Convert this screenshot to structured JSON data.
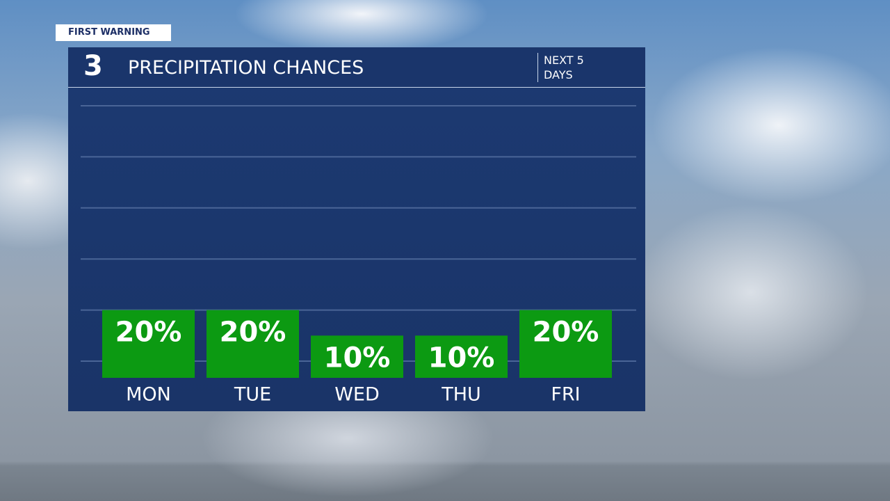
{
  "chart_data": {
    "type": "bar",
    "badge": "FIRST WARNING",
    "logo": "3",
    "title": "PRECIPITATION CHANCES",
    "subtitle": "NEXT 5 DAYS",
    "categories": [
      "MON",
      "TUE",
      "WED",
      "THU",
      "FRI"
    ],
    "values": [
      20,
      20,
      10,
      10,
      20
    ],
    "value_labels": [
      "20%",
      "20%",
      "10%",
      "10%",
      "20%"
    ],
    "color": "#0c9a12",
    "ylim": [
      0,
      100
    ],
    "yticks": [
      0,
      20,
      40,
      60,
      80,
      100
    ],
    "grid": true
  }
}
